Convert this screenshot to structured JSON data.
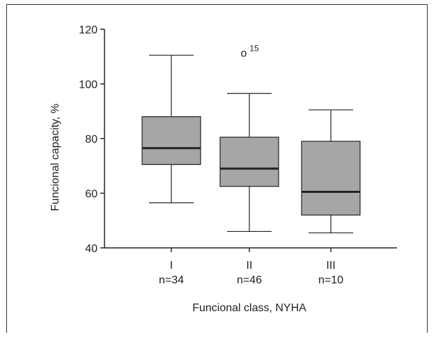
{
  "chart_data": {
    "type": "box",
    "xlabel": "Funcional class, NYHA",
    "ylabel": "Funcional capacity, %",
    "ylim": [
      40,
      120
    ],
    "yticks": [
      40,
      60,
      80,
      100,
      120
    ],
    "grid": false,
    "categories": [
      {
        "label": "I",
        "n_label": "n=34",
        "min": 56.5,
        "q1": 70.5,
        "median": 76.5,
        "q3": 88,
        "max": 110.5
      },
      {
        "label": "II",
        "n_label": "n=46",
        "min": 46,
        "q1": 62.5,
        "median": 69,
        "q3": 80.5,
        "max": 96.5
      },
      {
        "label": "III",
        "n_label": "n=10",
        "min": 45.5,
        "q1": 52,
        "median": 60.5,
        "q3": 79,
        "max": 90.5
      }
    ],
    "outliers": [
      {
        "category_index": 1,
        "value": 111.5,
        "marker": "o",
        "label": "15"
      }
    ],
    "box_color": "#a6a6a6",
    "median_color": "#222222"
  }
}
